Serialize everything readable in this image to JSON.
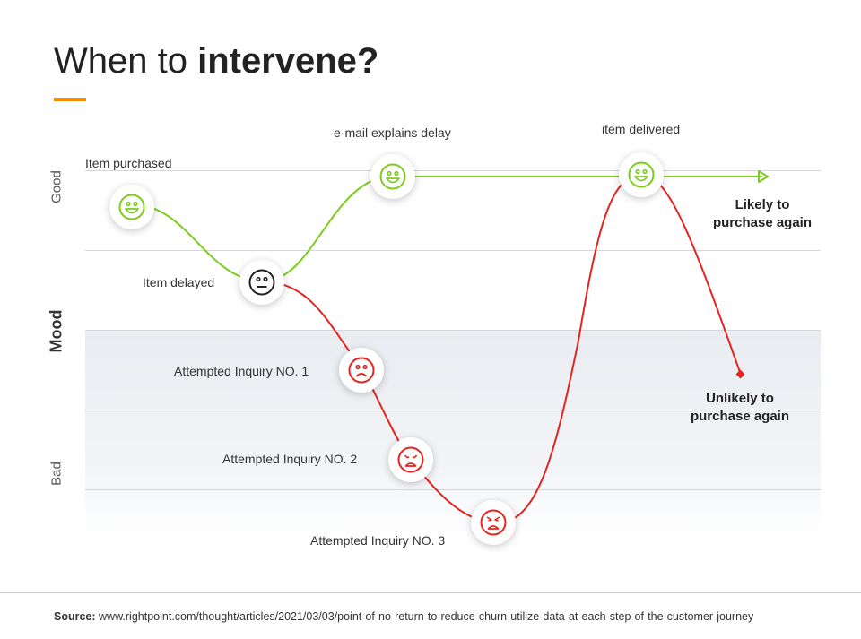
{
  "title": {
    "prefix": "When to ",
    "bold": "intervene?"
  },
  "axis": {
    "good": "Good",
    "mood": "Mood",
    "bad": "Bad"
  },
  "events": {
    "item_purchased": "Item purchased",
    "item_delayed": "Item delayed",
    "email_explains": "e-mail explains delay",
    "item_delivered": "item delivered",
    "inquiry_1": "Attempted Inquiry NO. 1",
    "inquiry_2": "Attempted Inquiry NO. 2",
    "inquiry_3": "Attempted Inquiry NO. 3"
  },
  "outcomes": {
    "likely_line1": "Likely to",
    "likely_line2": "purchase again",
    "unlikely_line1": "Unlikely to",
    "unlikely_line2": "purchase again"
  },
  "faces": {
    "happy": "happy-face-icon",
    "neutral": "neutral-face-icon",
    "sad": "sad-face-icon",
    "worried": "worried-face-icon",
    "angry": "angry-face-icon"
  },
  "footer": {
    "label": "Source:",
    "url": "www.rightpoint.com/thought/articles/2021/03/03/point-of-no-return-to-reduce-churn-utilize-data-at-each-step-of-the-customer-journey"
  },
  "colors": {
    "green": "#7ccc1a",
    "red": "#e52420",
    "neutral": "#222222",
    "accent": "#f28c00"
  }
}
